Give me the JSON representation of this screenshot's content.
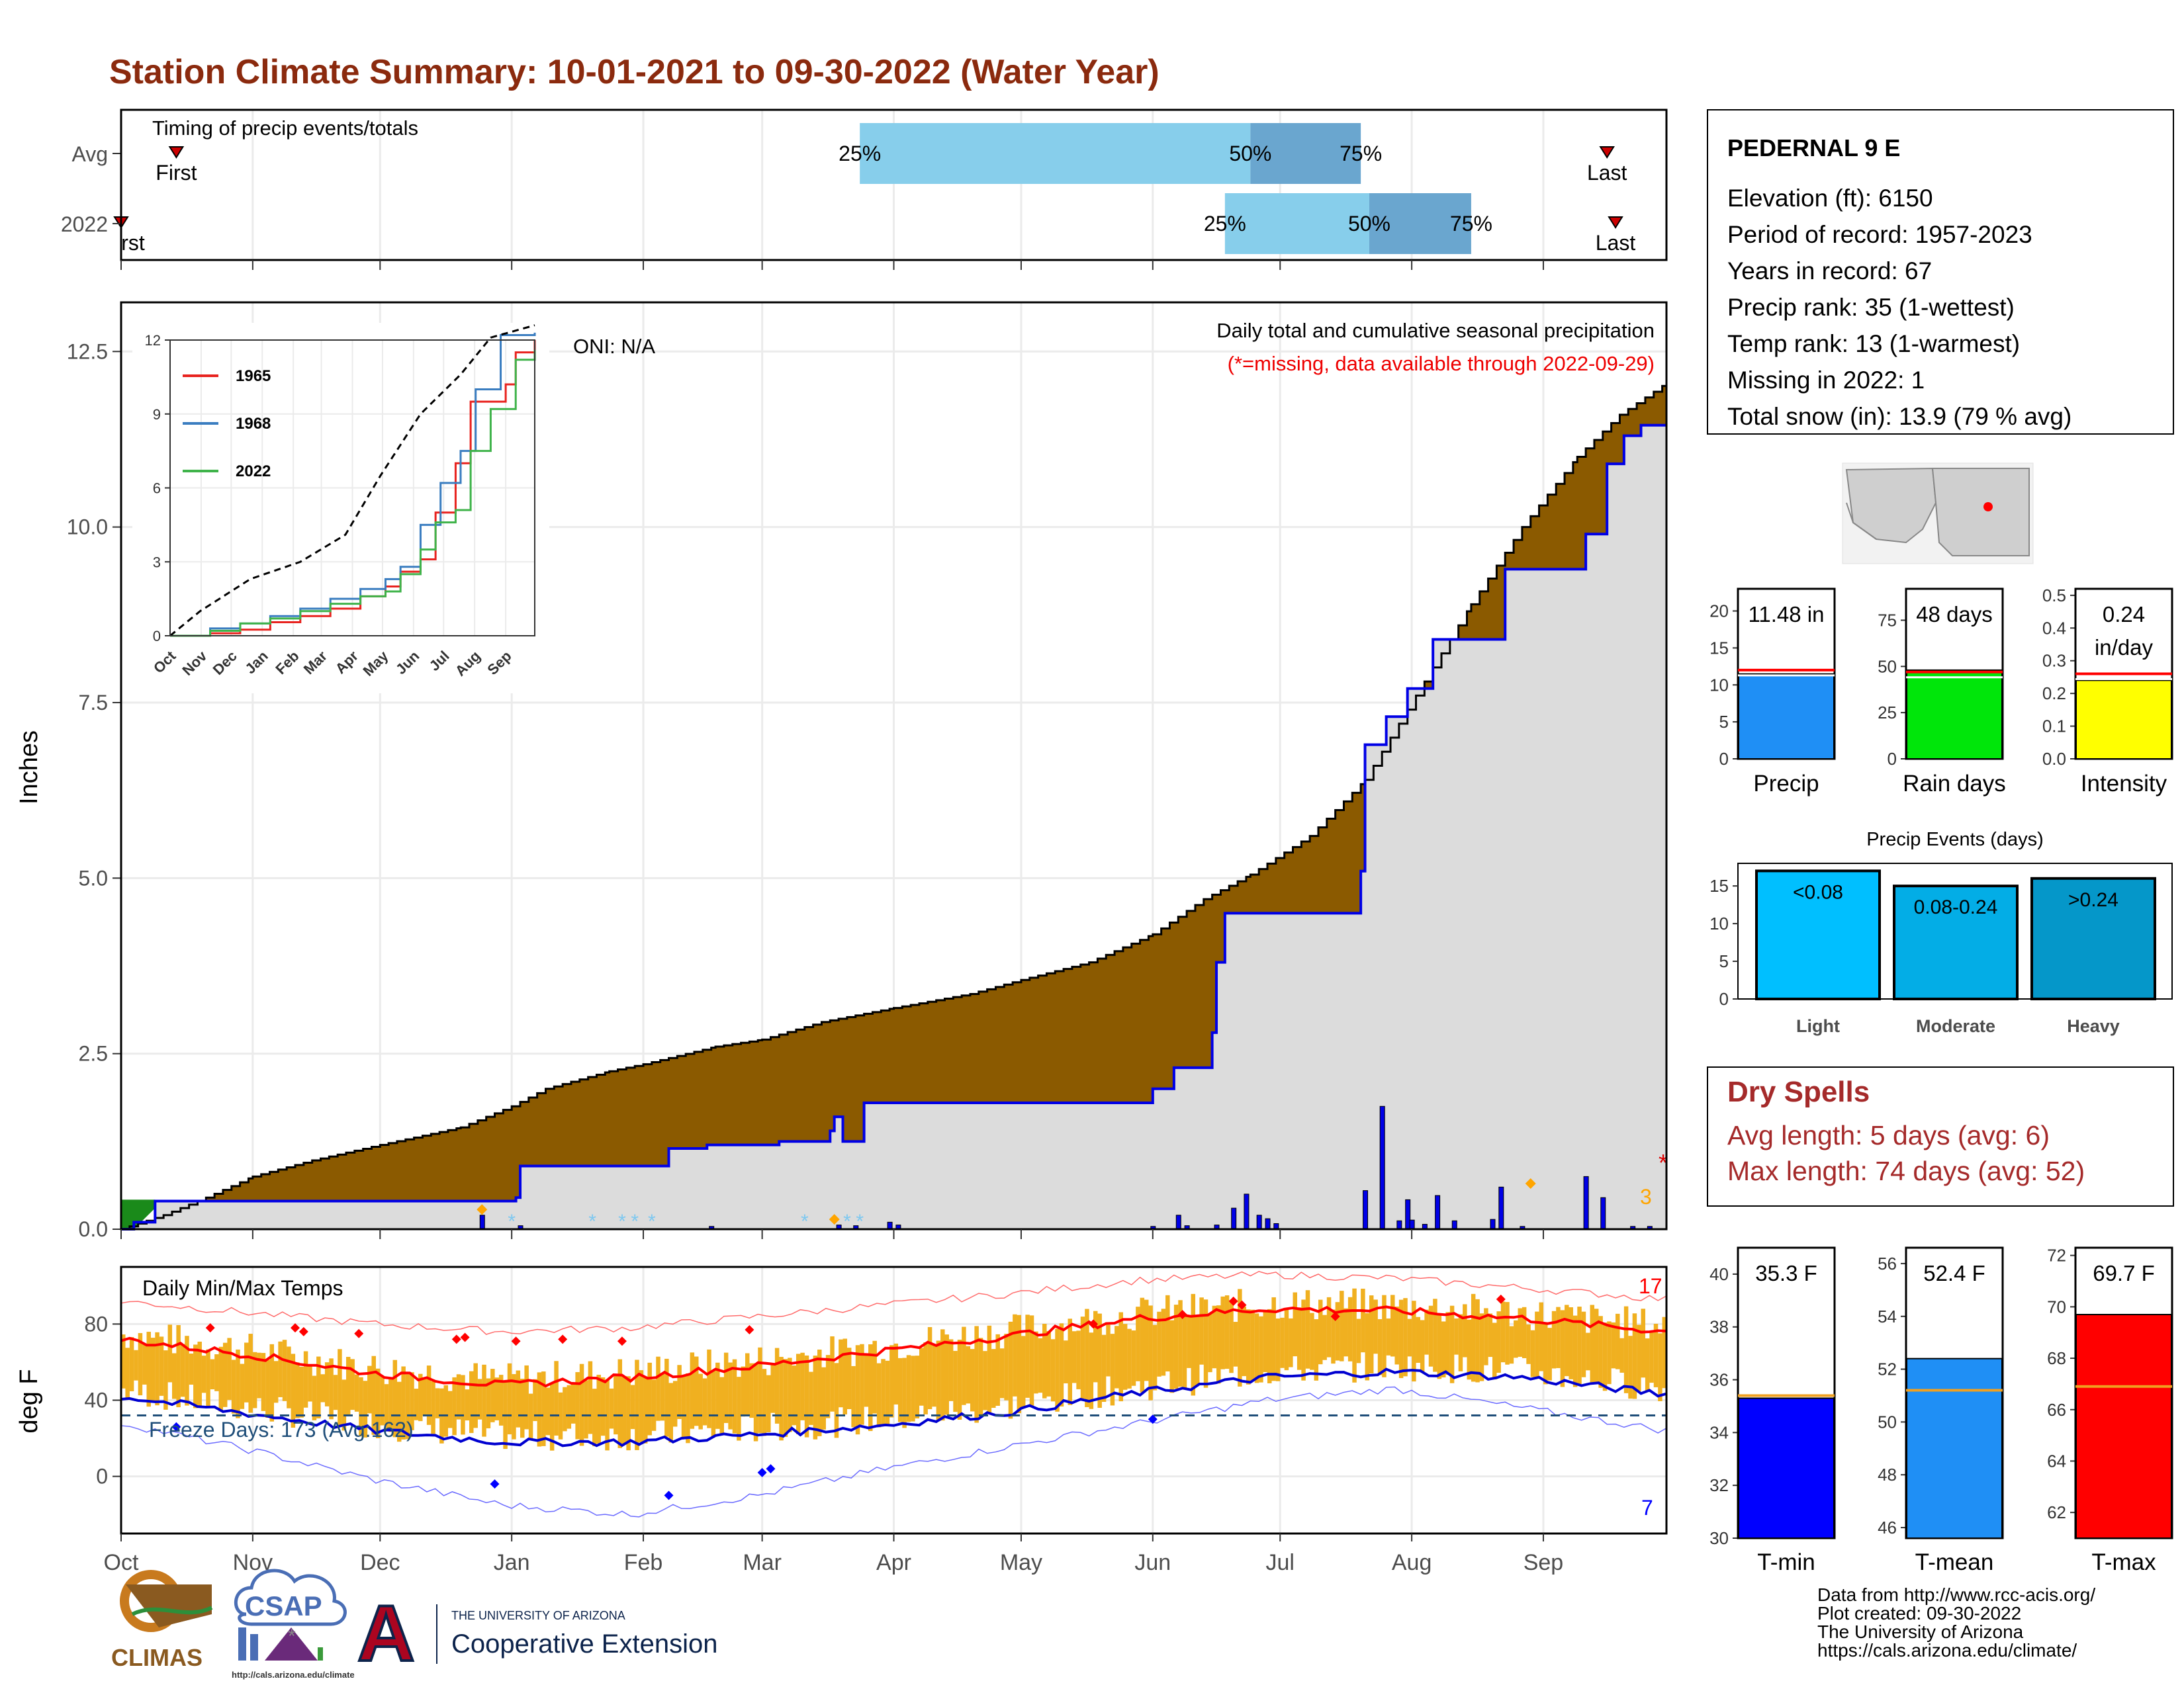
{
  "page": {
    "title": "Station Climate Summary: 10-01-2021 to 09-30-2022 (Water Year)"
  },
  "months": [
    "Oct",
    "Nov",
    "Dec",
    "Jan",
    "Feb",
    "Mar",
    "Apr",
    "May",
    "Jun",
    "Jul",
    "Aug",
    "Sep"
  ],
  "timing": {
    "label": "Timing of precip events/totals",
    "rows": [
      "Avg",
      "2022"
    ],
    "first_label": "First",
    "first_label_2022": "rst",
    "last_label": "Last",
    "pct": [
      "25%",
      "50%",
      "75%"
    ],
    "avg": {
      "first_day": 13,
      "p25": 174,
      "p50": 266,
      "p75": 292,
      "last_day": 350
    },
    "year": {
      "first_day": 0,
      "p25": 260,
      "p50": 294,
      "p75": 318,
      "last_day": 352
    }
  },
  "precip": {
    "ylabel": "Inches",
    "yticks": [
      "0.0",
      "2.5",
      "5.0",
      "7.5",
      "10.0",
      "12.5"
    ],
    "ylim": [
      0,
      13.2
    ],
    "header": "Daily total and cumulative seasonal precipitation",
    "note": "(*=missing, data available through 2022-09-29)",
    "oni": "ONI: N/A",
    "missing_mark": "*",
    "snow_count": "3",
    "avg_cumulative": [
      [
        0,
        0.0
      ],
      [
        10,
        0.2
      ],
      [
        20,
        0.45
      ],
      [
        31,
        0.75
      ],
      [
        45,
        0.98
      ],
      [
        61,
        1.2
      ],
      [
        80,
        1.45
      ],
      [
        92,
        1.75
      ],
      [
        100,
        2.0
      ],
      [
        115,
        2.25
      ],
      [
        123,
        2.35
      ],
      [
        140,
        2.6
      ],
      [
        151,
        2.7
      ],
      [
        165,
        2.95
      ],
      [
        182,
        3.15
      ],
      [
        200,
        3.35
      ],
      [
        212,
        3.55
      ],
      [
        228,
        3.8
      ],
      [
        243,
        4.2
      ],
      [
        255,
        4.7
      ],
      [
        266,
        5.05
      ],
      [
        280,
        5.6
      ],
      [
        293,
        6.4
      ],
      [
        305,
        7.6
      ],
      [
        318,
        8.9
      ],
      [
        330,
        10.0
      ],
      [
        343,
        11.0
      ],
      [
        353,
        11.6
      ],
      [
        364,
        12.05
      ]
    ],
    "year_cumulative": [
      [
        0,
        0.0
      ],
      [
        3,
        0.1
      ],
      [
        8,
        0.4
      ],
      [
        93,
        0.45
      ],
      [
        94,
        0.9
      ],
      [
        128,
        0.9
      ],
      [
        129,
        1.15
      ],
      [
        138,
        1.2
      ],
      [
        155,
        1.25
      ],
      [
        155,
        1.25
      ],
      [
        170,
        1.25
      ],
      [
        170,
        1.25
      ],
      [
        167,
        1.4
      ],
      [
        168,
        1.6
      ],
      [
        175,
        1.8
      ],
      [
        230,
        1.8
      ],
      [
        241,
        1.8
      ],
      [
        243,
        2.0
      ],
      [
        248,
        2.3
      ],
      [
        257,
        2.8
      ],
      [
        258,
        3.8
      ],
      [
        260,
        4.5
      ],
      [
        265,
        4.5
      ],
      [
        290,
        4.5
      ],
      [
        292,
        5.1
      ],
      [
        293,
        6.9
      ],
      [
        298,
        7.3
      ],
      [
        303,
        7.7
      ],
      [
        309,
        8.4
      ],
      [
        325,
        8.4
      ],
      [
        326,
        9.4
      ],
      [
        345,
        9.9
      ],
      [
        350,
        10.9
      ],
      [
        354,
        11.3
      ],
      [
        358,
        11.45
      ],
      [
        364,
        11.45
      ]
    ],
    "daily_bars": [
      [
        85,
        0.2
      ],
      [
        94,
        0.05
      ],
      [
        139,
        0.04
      ],
      [
        169,
        0.06
      ],
      [
        173,
        0.05
      ],
      [
        181,
        0.1
      ],
      [
        183,
        0.06
      ],
      [
        243,
        0.04
      ],
      [
        249,
        0.2
      ],
      [
        251,
        0.05
      ],
      [
        258,
        0.06
      ],
      [
        262,
        0.3
      ],
      [
        265,
        0.5
      ],
      [
        268,
        0.2
      ],
      [
        270,
        0.15
      ],
      [
        272,
        0.08
      ],
      [
        293,
        0.55
      ],
      [
        297,
        1.75
      ],
      [
        301,
        0.12
      ],
      [
        303,
        0.42
      ],
      [
        304,
        0.13
      ],
      [
        307,
        0.07
      ],
      [
        310,
        0.48
      ],
      [
        314,
        0.12
      ],
      [
        323,
        0.14
      ],
      [
        325,
        0.6
      ],
      [
        330,
        0.04
      ],
      [
        345,
        0.75
      ],
      [
        349,
        0.45
      ],
      [
        356,
        0.04
      ],
      [
        360,
        0.04
      ]
    ],
    "snow_days": [
      92,
      111,
      118,
      121,
      125,
      161,
      171,
      174
    ],
    "rain_markers": [
      [
        85,
        0.28
      ],
      [
        168,
        0.14
      ],
      [
        332,
        0.65
      ]
    ]
  },
  "inset": {
    "yticks": [
      "0",
      "3",
      "6",
      "9",
      "12"
    ],
    "ylim": [
      0,
      12
    ],
    "legend": [
      {
        "name": "1965",
        "color": "#e8231f"
      },
      {
        "name": "1968",
        "color": "#3a7dc0"
      },
      {
        "name": "2022",
        "color": "#3fb34a"
      }
    ],
    "months": [
      "Oct",
      "Nov",
      "Dec",
      "Jan",
      "Feb",
      "Mar",
      "Apr",
      "May",
      "Jun",
      "Jul",
      "Aug",
      "Sep"
    ],
    "avg_line": [
      [
        0,
        0
      ],
      [
        30,
        1.0
      ],
      [
        80,
        2.3
      ],
      [
        130,
        3.0
      ],
      [
        175,
        4.1
      ],
      [
        210,
        6.5
      ],
      [
        250,
        9.0
      ],
      [
        290,
        10.6
      ],
      [
        320,
        12.1
      ],
      [
        364,
        12.6
      ]
    ],
    "series": [
      {
        "name": "1965",
        "color": "#e8231f",
        "points": [
          [
            0,
            0
          ],
          [
            40,
            0.1
          ],
          [
            70,
            0.25
          ],
          [
            100,
            0.55
          ],
          [
            130,
            0.8
          ],
          [
            160,
            1.1
          ],
          [
            190,
            1.6
          ],
          [
            215,
            2.0
          ],
          [
            230,
            2.6
          ],
          [
            250,
            3.1
          ],
          [
            265,
            5.0
          ],
          [
            285,
            7.0
          ],
          [
            300,
            9.5
          ],
          [
            335,
            10.2
          ],
          [
            345,
            11.5
          ],
          [
            364,
            12.0
          ]
        ]
      },
      {
        "name": "1968",
        "color": "#3a7dc0",
        "points": [
          [
            0,
            0
          ],
          [
            40,
            0.3
          ],
          [
            70,
            0.5
          ],
          [
            100,
            0.8
          ],
          [
            130,
            1.1
          ],
          [
            160,
            1.5
          ],
          [
            190,
            1.9
          ],
          [
            215,
            2.3
          ],
          [
            230,
            2.8
          ],
          [
            250,
            4.5
          ],
          [
            270,
            6.2
          ],
          [
            290,
            7.5
          ],
          [
            305,
            10.0
          ],
          [
            330,
            12.2
          ],
          [
            364,
            12.3
          ]
        ]
      },
      {
        "name": "2022",
        "color": "#3fb34a",
        "points": [
          [
            0,
            0
          ],
          [
            40,
            0.2
          ],
          [
            70,
            0.5
          ],
          [
            100,
            0.7
          ],
          [
            130,
            1.0
          ],
          [
            160,
            1.3
          ],
          [
            190,
            1.6
          ],
          [
            215,
            1.8
          ],
          [
            230,
            2.5
          ],
          [
            250,
            3.5
          ],
          [
            265,
            4.6
          ],
          [
            285,
            5.1
          ],
          [
            300,
            7.5
          ],
          [
            320,
            9.2
          ],
          [
            345,
            11.2
          ],
          [
            364,
            11.6
          ]
        ]
      }
    ]
  },
  "temps": {
    "ylabel": "deg F",
    "label": "Daily Min/Max Temps",
    "yticks": [
      "0",
      "40",
      "80"
    ],
    "ylim": [
      -30,
      110
    ],
    "freeze_label": "Freeze Days: 173 (Avg:162)",
    "freeze_line": 32,
    "record_high_count": "17",
    "record_low_count": "7",
    "avg_max": [
      [
        0,
        72
      ],
      [
        30,
        64
      ],
      [
        60,
        54
      ],
      [
        90,
        48
      ],
      [
        120,
        52
      ],
      [
        150,
        58
      ],
      [
        180,
        66
      ],
      [
        210,
        74
      ],
      [
        240,
        83
      ],
      [
        270,
        88
      ],
      [
        300,
        87
      ],
      [
        330,
        83
      ],
      [
        364,
        76
      ]
    ],
    "avg_min": [
      [
        0,
        42
      ],
      [
        30,
        33
      ],
      [
        60,
        24
      ],
      [
        90,
        18
      ],
      [
        120,
        18
      ],
      [
        150,
        22
      ],
      [
        180,
        27
      ],
      [
        210,
        34
      ],
      [
        240,
        44
      ],
      [
        270,
        52
      ],
      [
        300,
        55
      ],
      [
        330,
        52
      ],
      [
        364,
        43
      ]
    ],
    "rec_max": [
      [
        0,
        92
      ],
      [
        30,
        86
      ],
      [
        60,
        80
      ],
      [
        90,
        76
      ],
      [
        120,
        78
      ],
      [
        150,
        84
      ],
      [
        180,
        90
      ],
      [
        210,
        96
      ],
      [
        240,
        103
      ],
      [
        270,
        106
      ],
      [
        300,
        104
      ],
      [
        330,
        99
      ],
      [
        364,
        93
      ]
    ],
    "rec_min": [
      [
        0,
        28
      ],
      [
        30,
        14
      ],
      [
        60,
        -2
      ],
      [
        90,
        -15
      ],
      [
        120,
        -20
      ],
      [
        150,
        -10
      ],
      [
        180,
        4
      ],
      [
        210,
        16
      ],
      [
        240,
        28
      ],
      [
        270,
        40
      ],
      [
        300,
        46
      ],
      [
        330,
        36
      ],
      [
        364,
        24
      ]
    ]
  },
  "station": {
    "name": "PEDERNAL 9 E",
    "lines": [
      "Elevation (ft): 6150",
      "Period of record: 1957-2023",
      "Years in record: 67",
      "Precip rank: 35 (1-wettest)",
      "Temp rank: 13 (1-warmest)",
      "Missing in 2022: 1",
      "Total snow (in): 13.9 (79 % avg)"
    ]
  },
  "summary_bars": [
    {
      "label": "Precip",
      "value_text": "11.48 in",
      "value": 11.48,
      "avg": 12.0,
      "ymax": 23,
      "yticks": [
        "0",
        "5",
        "10",
        "15",
        "20"
      ],
      "ytick_vals": [
        0,
        5,
        10,
        15,
        20
      ],
      "color": "#1f8ff5"
    },
    {
      "label": "Rain days",
      "value_text": "48 days",
      "value": 48,
      "avg": 47,
      "ymax": 92,
      "yticks": [
        "0",
        "25",
        "50",
        "75"
      ],
      "ytick_vals": [
        0,
        25,
        50,
        75
      ],
      "color": "#00e60a"
    },
    {
      "label": "Intensity",
      "value_text": "0.24",
      "value_text2": "in/day",
      "value": 0.24,
      "avg": 0.26,
      "ymax": 0.52,
      "yticks": [
        "0.0",
        "0.1",
        "0.2",
        "0.3",
        "0.4",
        "0.5"
      ],
      "ytick_vals": [
        0,
        0.1,
        0.2,
        0.3,
        0.4,
        0.5
      ],
      "color": "#ffff00"
    }
  ],
  "events": {
    "title": "Precip Events (days)",
    "yticks": [
      "0",
      "5",
      "10",
      "15"
    ],
    "ylim": [
      0,
      18
    ],
    "bars": [
      {
        "category": "Light",
        "label": "<0.08",
        "value": 17,
        "color": "#00bfff"
      },
      {
        "category": "Moderate",
        "label": "0.08-0.24",
        "value": 15,
        "color": "#03ade6"
      },
      {
        "category": "Heavy",
        "label": ">0.24",
        "value": 16,
        "color": "#0597c9"
      }
    ]
  },
  "dry_spells": {
    "title": "Dry Spells",
    "avg_length": "Avg length: 5 days (avg: 6)",
    "max_length": "Max length: 74 days (avg: 52)"
  },
  "temp_bars": [
    {
      "label": "T-min",
      "value_text": "35.3 F",
      "value": 35.3,
      "avg": 35.4,
      "ymin": 30,
      "ymax": 41,
      "yticks": [
        "30",
        "32",
        "34",
        "36",
        "38",
        "40"
      ],
      "ytick_vals": [
        30,
        32,
        34,
        36,
        38,
        40
      ],
      "color": "#0000ff"
    },
    {
      "label": "T-mean",
      "value_text": "52.4 F",
      "value": 52.4,
      "avg": 51.2,
      "ymin": 45.6,
      "ymax": 56.6,
      "yticks": [
        "46",
        "48",
        "50",
        "52",
        "54",
        "56"
      ],
      "ytick_vals": [
        46,
        48,
        50,
        52,
        54,
        56
      ],
      "color": "#1f8ff5"
    },
    {
      "label": "T-max",
      "value_text": "69.7 F",
      "value": 69.7,
      "avg": 66.9,
      "ymin": 61,
      "ymax": 72.3,
      "yticks": [
        "62",
        "64",
        "66",
        "68",
        "70",
        "72"
      ],
      "ytick_vals": [
        62,
        64,
        66,
        68,
        70,
        72
      ],
      "color": "#ff0000"
    }
  ],
  "footer": {
    "lines": [
      "Data from http://www.rcc-acis.org/",
      "Plot created: 09-30-2022",
      "The University of Arizona",
      "https://cals.arizona.edu/climate/"
    ],
    "climas": "CLIMAS",
    "csap": "CSAP",
    "csap_url": "http://cals.arizona.edu/climate",
    "ua_small": "THE UNIVERSITY OF ARIZONA",
    "ua_big": "Cooperative Extension",
    "ua_letter": "A"
  },
  "colors": {
    "brown": "#8b5a00",
    "gray_fill": "#dcdcdc",
    "blue": "#0000e6",
    "orange_bar": "#f0b020",
    "avg_max": "#ff0000",
    "avg_min": "#0000d0",
    "title": "#8b2a0e",
    "dry": "#a52a2a"
  }
}
